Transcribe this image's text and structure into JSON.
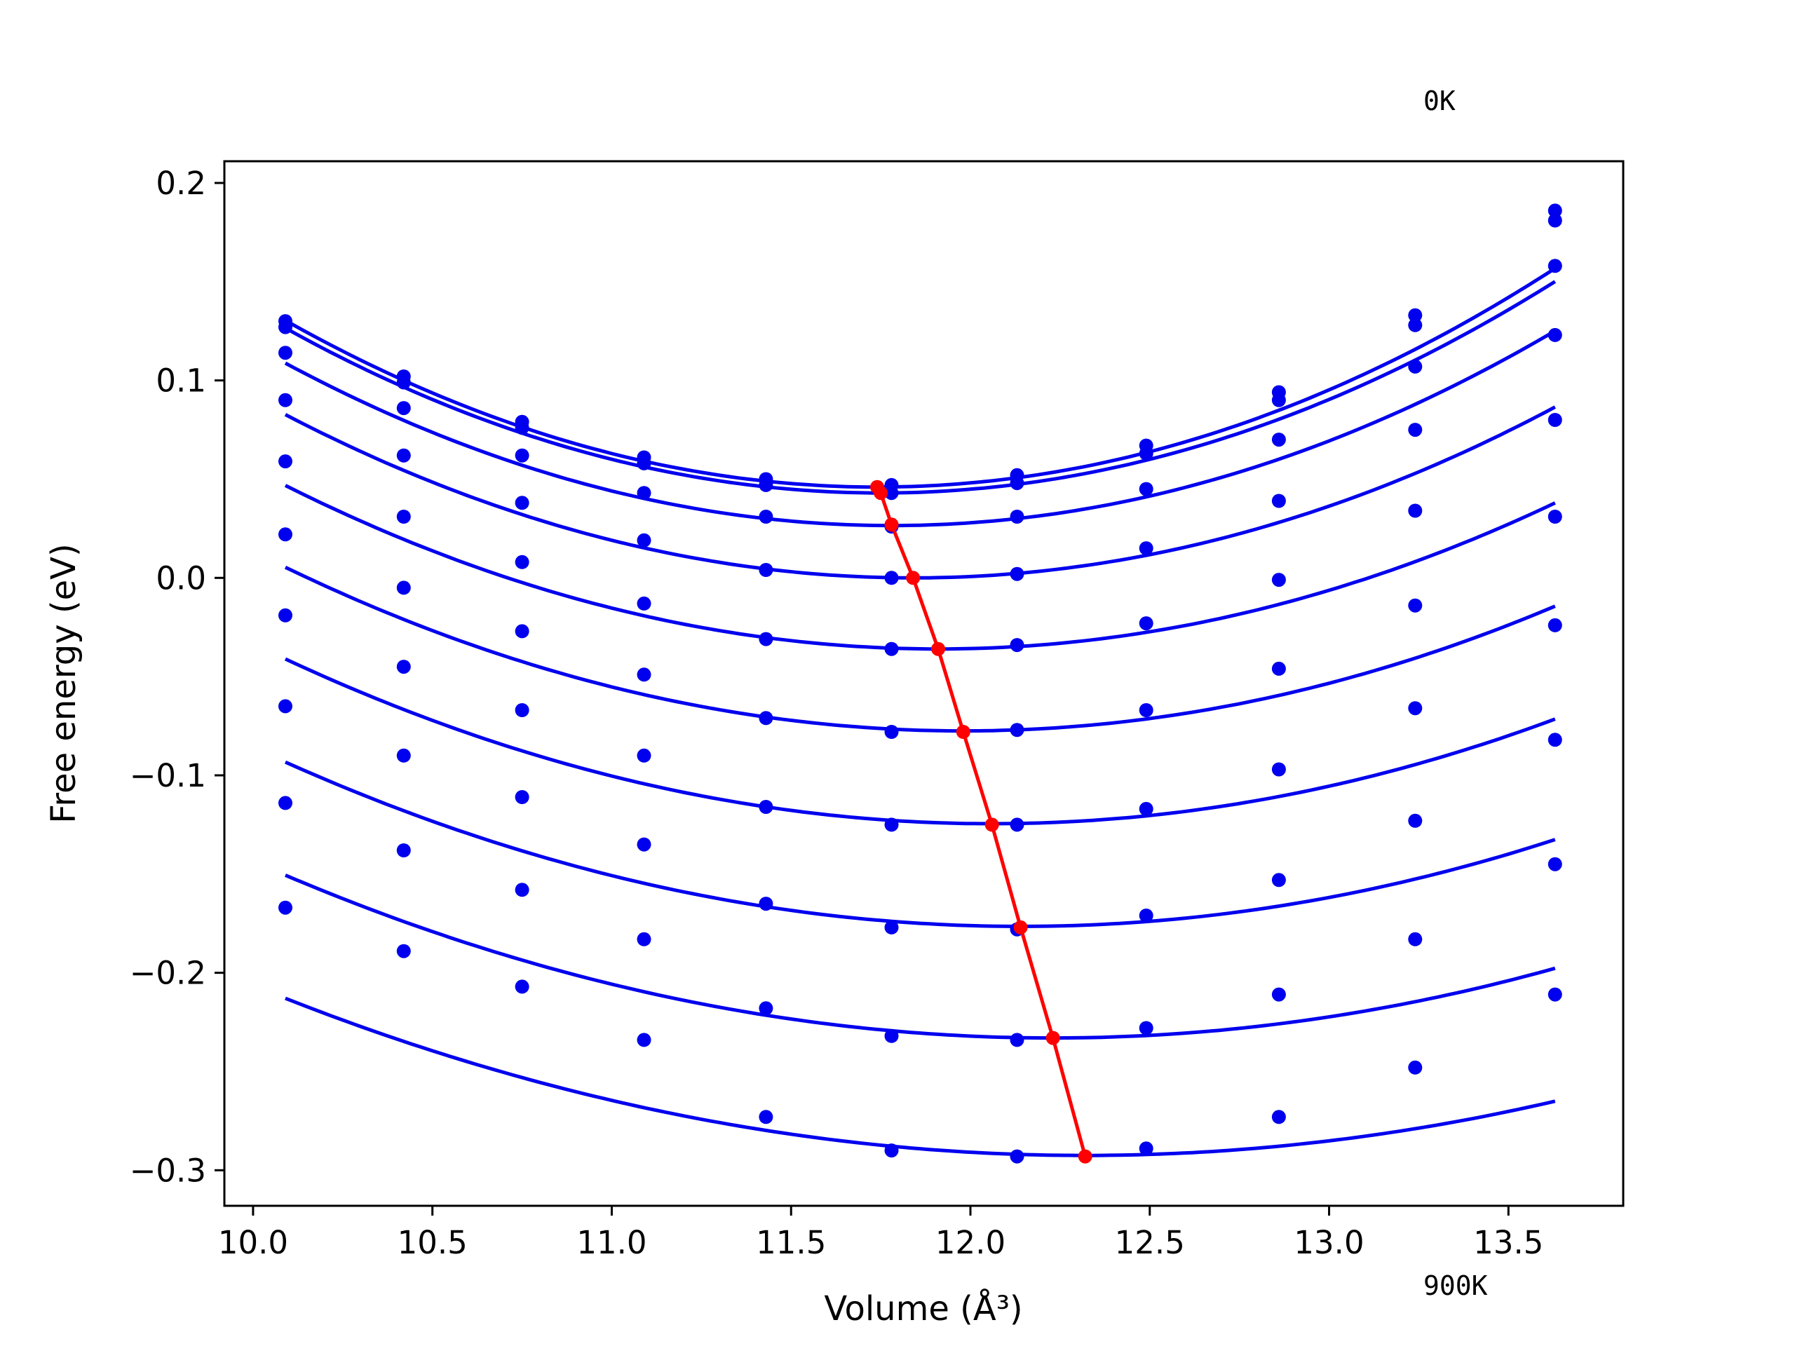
{
  "chart_data": {
    "type": "scatter",
    "xlabel": "Volume (Å³)",
    "ylabel": "Free energy (eV)",
    "xlim": [
      9.92,
      13.82
    ],
    "ylim": [
      -0.318,
      0.211
    ],
    "x_ticks": [
      10.0,
      10.5,
      11.0,
      11.5,
      12.0,
      12.5,
      13.0,
      13.5
    ],
    "x_tick_labels": [
      "10.0",
      "10.5",
      "11.0",
      "11.5",
      "12.0",
      "12.5",
      "13.0",
      "13.5"
    ],
    "y_ticks": [
      -0.3,
      -0.2,
      -0.1,
      0.0,
      0.1,
      0.2
    ],
    "y_tick_labels": [
      "−0.3",
      "−0.2",
      "−0.1",
      "0.0",
      "0.1",
      "0.2"
    ],
    "grid": false,
    "annotations": [
      {
        "text": "0K",
        "position": "top-right"
      },
      {
        "text": "900K",
        "position": "bottom-right"
      }
    ],
    "colors": {
      "data": "#0000ee",
      "minima": "#ff0000"
    },
    "volumes": [
      10.09,
      10.42,
      10.75,
      11.09,
      11.43,
      11.78,
      12.13,
      12.49,
      12.86,
      13.24,
      13.63
    ],
    "series": [
      {
        "values": [
          0.13,
          0.102,
          0.079,
          0.061,
          0.05,
          0.047,
          0.052,
          0.067,
          0.094,
          0.133,
          0.186
        ],
        "fit": {
          "v0": 11.74,
          "e0": 0.046,
          "a": 0.031
        }
      },
      {
        "values": [
          0.127,
          0.099,
          0.076,
          0.058,
          0.047,
          0.043,
          0.048,
          0.063,
          0.09,
          0.128,
          0.181
        ],
        "fit": {
          "v0": 11.75,
          "e0": 0.043,
          "a": 0.0303
        }
      },
      {
        "values": [
          0.114,
          0.086,
          0.062,
          0.043,
          0.031,
          0.026,
          0.031,
          0.045,
          0.07,
          0.107,
          0.158
        ],
        "fit": {
          "v0": 11.78,
          "e0": 0.0265,
          "a": 0.0288
        }
      },
      {
        "values": [
          0.09,
          0.062,
          0.038,
          0.019,
          0.004,
          0.0,
          0.002,
          0.015,
          0.039,
          0.075,
          0.123
        ],
        "fit": {
          "v0": 11.84,
          "e0": 0.0,
          "a": 0.027
        }
      },
      {
        "values": [
          0.059,
          0.031,
          0.008,
          -0.013,
          -0.031,
          -0.036,
          -0.034,
          -0.023,
          -0.001,
          0.034,
          0.08
        ],
        "fit": {
          "v0": 11.91,
          "e0": -0.036,
          "a": 0.025
        }
      },
      {
        "values": [
          0.022,
          -0.005,
          -0.027,
          -0.049,
          -0.071,
          -0.078,
          -0.077,
          -0.067,
          -0.046,
          -0.014,
          0.031
        ],
        "fit": {
          "v0": 11.98,
          "e0": -0.0775,
          "a": 0.0232
        }
      },
      {
        "values": [
          -0.019,
          -0.045,
          -0.067,
          -0.09,
          -0.116,
          -0.125,
          -0.125,
          -0.117,
          -0.097,
          -0.066,
          -0.024
        ],
        "fit": {
          "v0": 12.06,
          "e0": -0.1245,
          "a": 0.0215
        }
      },
      {
        "values": [
          -0.065,
          -0.09,
          -0.111,
          -0.135,
          -0.165,
          -0.177,
          -0.178,
          -0.171,
          -0.153,
          -0.123,
          -0.082
        ],
        "fit": {
          "v0": 12.14,
          "e0": -0.1765,
          "a": 0.0198
        }
      },
      {
        "values": [
          -0.114,
          -0.138,
          -0.158,
          -0.183,
          -0.218,
          -0.232,
          -0.234,
          -0.228,
          -0.211,
          -0.183,
          -0.145
        ],
        "fit": {
          "v0": 12.23,
          "e0": -0.233,
          "a": 0.018
        }
      },
      {
        "values": [
          -0.167,
          -0.189,
          -0.207,
          -0.234,
          -0.273,
          -0.29,
          -0.293,
          -0.289,
          -0.273,
          -0.248,
          -0.211
        ],
        "fit": {
          "v0": 12.32,
          "e0": -0.2925,
          "a": 0.016
        }
      }
    ],
    "minima": {
      "x": [
        11.74,
        11.75,
        11.78,
        11.84,
        11.91,
        11.98,
        12.06,
        12.14,
        12.23,
        12.32
      ],
      "y": [
        0.046,
        0.043,
        0.027,
        0.0,
        -0.036,
        -0.078,
        -0.125,
        -0.177,
        -0.233,
        -0.293
      ]
    }
  }
}
